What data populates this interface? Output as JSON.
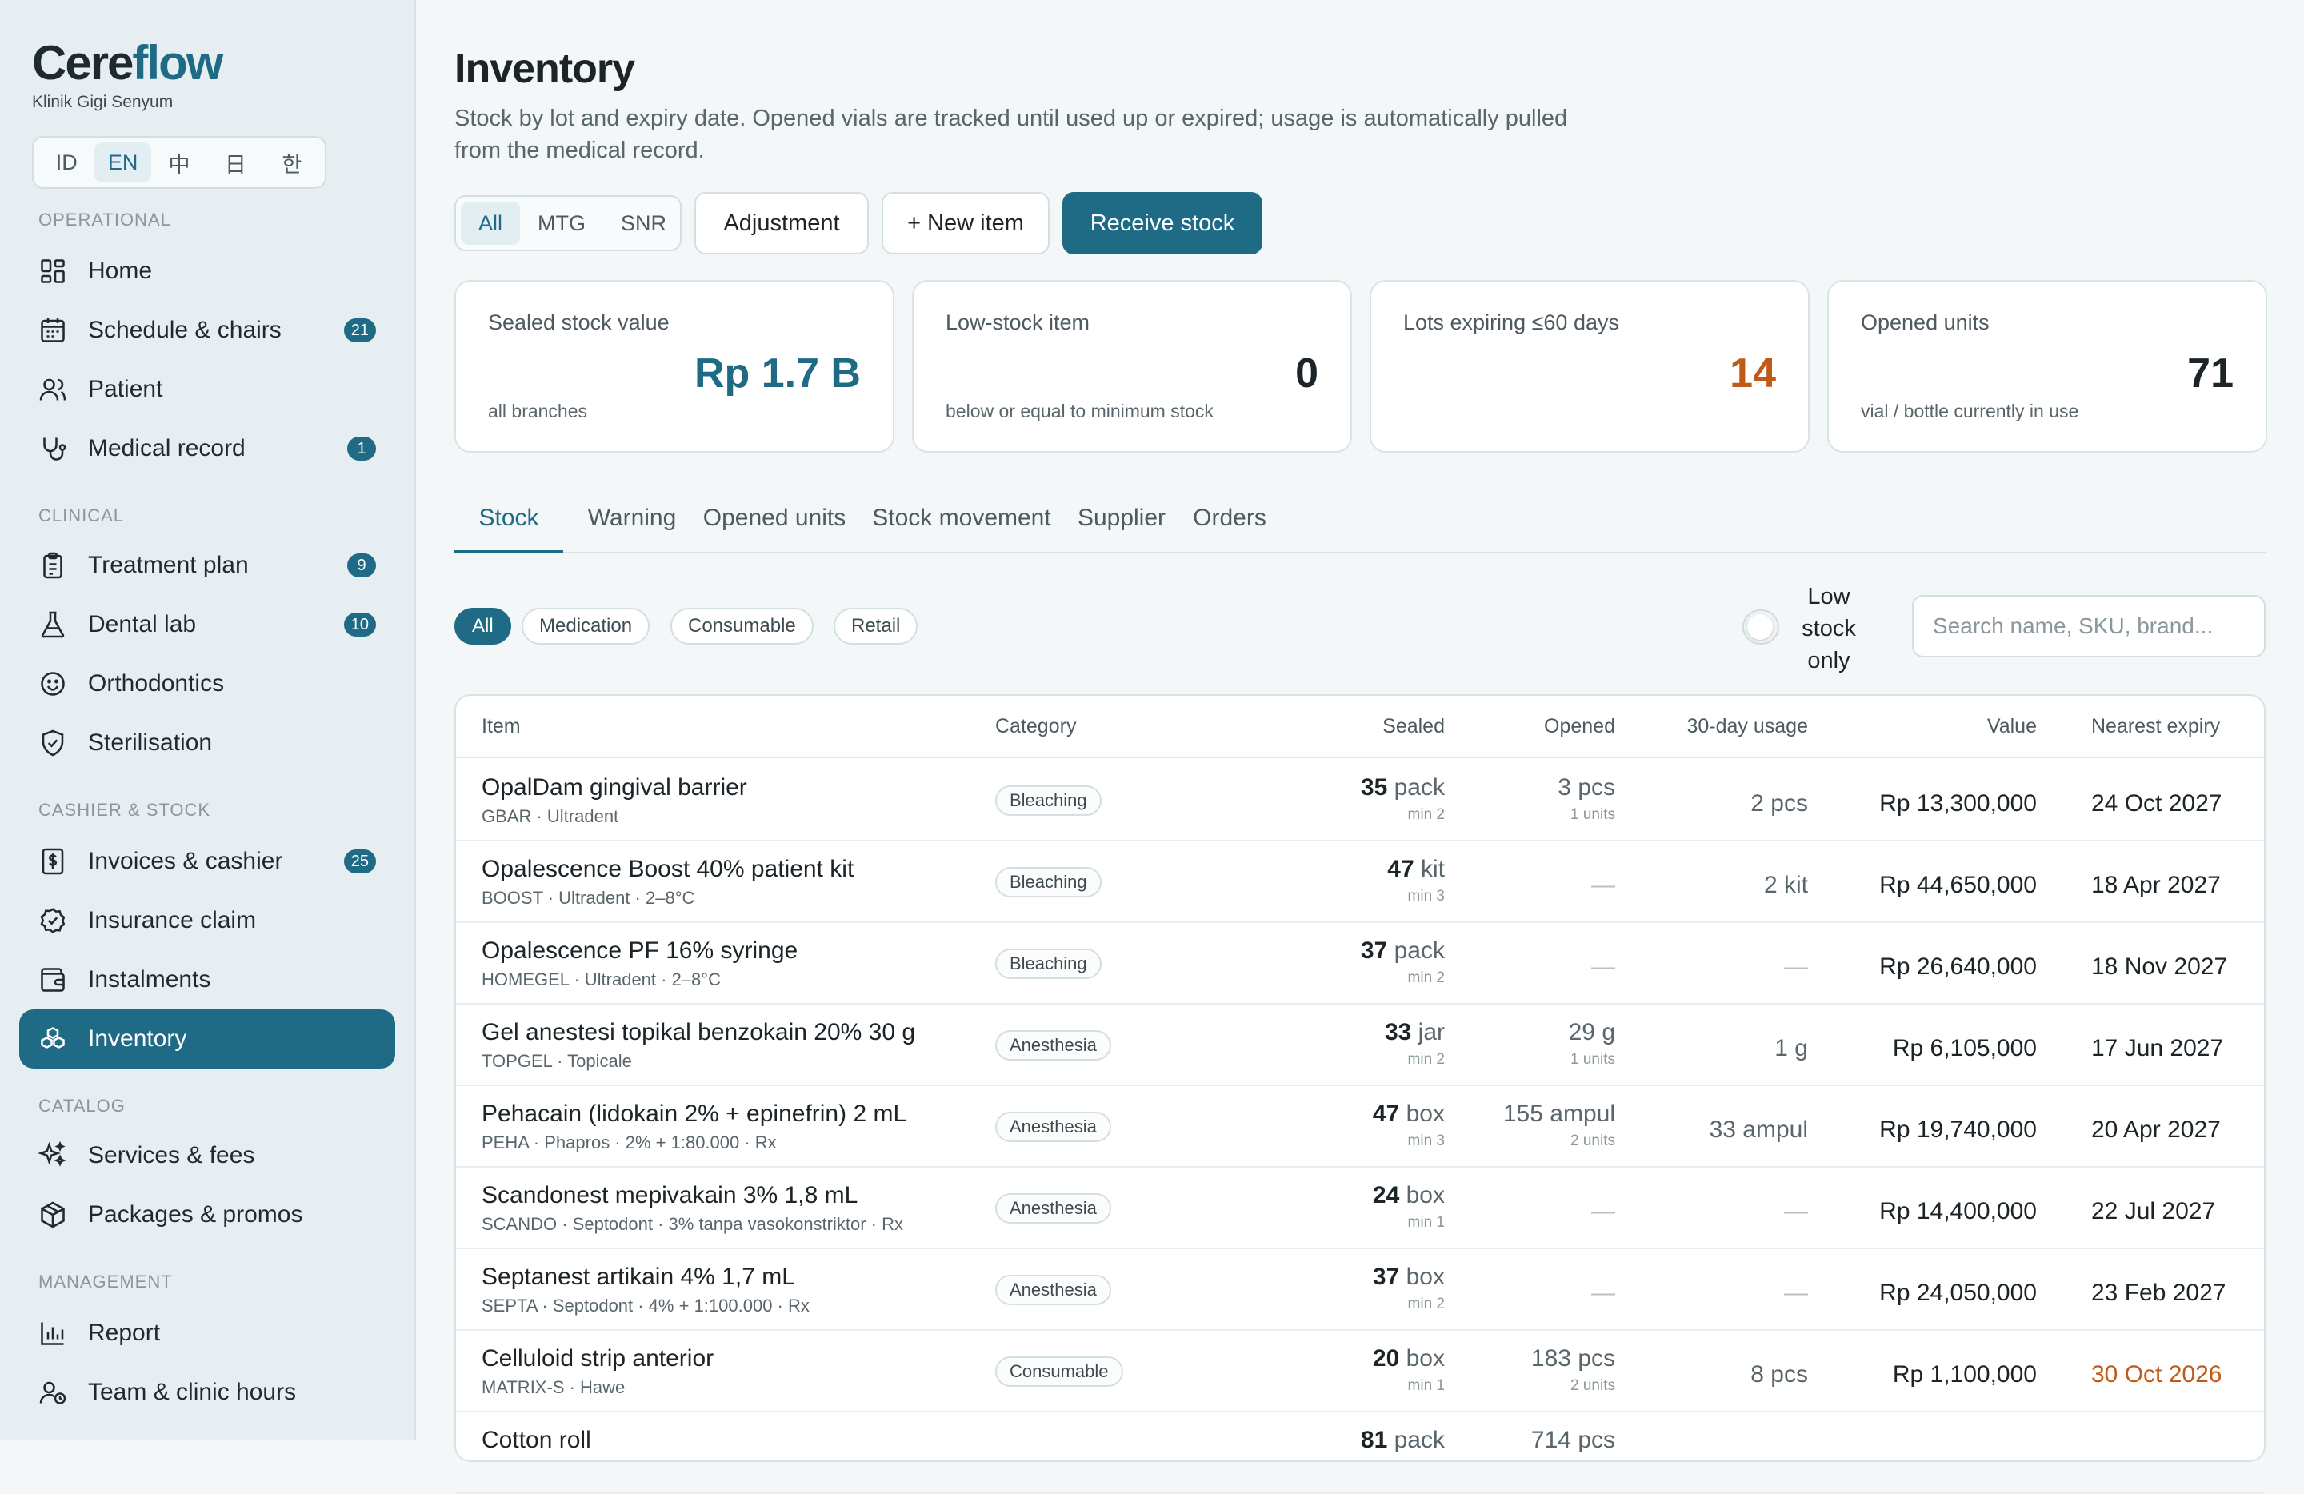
{
  "brand": {
    "logo_dark": "Cere",
    "logo_accent": "flow",
    "clinic": "Klinik Gigi Senyum"
  },
  "languages": [
    "ID",
    "EN",
    "中",
    "日",
    "한"
  ],
  "active_language": "EN",
  "sidebar": {
    "sections": {
      "operational": "OPERATIONAL",
      "clinical": "CLINICAL",
      "cashier": "CASHIER & STOCK",
      "catalog": "CATALOG",
      "management": "MANAGEMENT"
    },
    "items": {
      "home": {
        "label": "Home",
        "icon": "grid-icon"
      },
      "schedule": {
        "label": "Schedule & chairs",
        "icon": "calendar-icon",
        "badge": "21"
      },
      "patient": {
        "label": "Patient",
        "icon": "users-icon"
      },
      "medical": {
        "label": "Medical record",
        "icon": "stethoscope-icon",
        "badge": "1"
      },
      "treatment": {
        "label": "Treatment plan",
        "icon": "clipboard-icon",
        "badge": "9"
      },
      "dental_lab": {
        "label": "Dental lab",
        "icon": "flask-icon",
        "badge": "10"
      },
      "ortho": {
        "label": "Orthodontics",
        "icon": "smile-icon"
      },
      "steril": {
        "label": "Sterilisation",
        "icon": "shield-check-icon"
      },
      "invoices": {
        "label": "Invoices & cashier",
        "icon": "receipt-icon",
        "badge": "25"
      },
      "insurance": {
        "label": "Insurance claim",
        "icon": "check-circle-icon"
      },
      "instalments": {
        "label": "Instalments",
        "icon": "wallet-icon"
      },
      "inventory": {
        "label": "Inventory",
        "icon": "boxes-icon"
      },
      "services": {
        "label": "Services & fees",
        "icon": "sparkles-icon"
      },
      "packages": {
        "label": "Packages & promos",
        "icon": "package-icon"
      },
      "report": {
        "label": "Report",
        "icon": "bar-chart-icon"
      },
      "team": {
        "label": "Team & clinic hours",
        "icon": "user-clock-icon"
      }
    }
  },
  "page": {
    "title": "Inventory",
    "description": "Stock by lot and expiry date. Opened vials are tracked until used up or expired; usage is automatically pulled from the medical record."
  },
  "branch_filter": [
    "All",
    "MTG",
    "SNR"
  ],
  "buttons": {
    "adjustment": "Adjustment",
    "new_item": "+ New item",
    "receive": "Receive stock"
  },
  "stats": [
    {
      "label": "Sealed stock value",
      "value": "Rp 1.7 B",
      "sub": "all branches"
    },
    {
      "label": "Low-stock item",
      "value": "0",
      "sub": "below or equal to minimum stock"
    },
    {
      "label": "Lots expiring ≤60 days",
      "value": "14",
      "sub": ""
    },
    {
      "label": "Opened units",
      "value": "71",
      "sub": "vial / bottle currently in use"
    }
  ],
  "tabs": [
    "Stock",
    "Warning",
    "Opened units",
    "Stock movement",
    "Supplier",
    "Orders"
  ],
  "category_filters": [
    "All",
    "Medication",
    "Consumable",
    "Retail"
  ],
  "low_stock_label": "Low stock only",
  "search_placeholder": "Search name, SKU, brand...",
  "table": {
    "headers": {
      "item": "Item",
      "category": "Category",
      "sealed": "Sealed",
      "opened": "Opened",
      "usage": "30-day usage",
      "value": "Value",
      "expiry": "Nearest expiry"
    },
    "dash": "—",
    "rows": [
      {
        "name": "OpalDam gingival barrier",
        "meta": "GBAR · Ultradent",
        "category": "Bleaching",
        "sealed_qty": "35",
        "sealed_unit": "pack",
        "sealed_min": "min 2",
        "opened_qty": "3",
        "opened_unit": "pcs",
        "opened_sub": "1 units",
        "usage": "2 pcs",
        "value": "Rp 13,300,000",
        "expiry": "24 Oct 2027"
      },
      {
        "name": "Opalescence Boost 40% patient kit",
        "meta": "BOOST · Ultradent · 2–8°C",
        "category": "Bleaching",
        "sealed_qty": "47",
        "sealed_unit": "kit",
        "sealed_min": "min 3",
        "opened_qty": "",
        "opened_unit": "",
        "opened_sub": "",
        "usage": "2 kit",
        "value": "Rp 44,650,000",
        "expiry": "18 Apr 2027"
      },
      {
        "name": "Opalescence PF 16% syringe",
        "meta": "HOMEGEL · Ultradent · 2–8°C",
        "category": "Bleaching",
        "sealed_qty": "37",
        "sealed_unit": "pack",
        "sealed_min": "min 2",
        "opened_qty": "",
        "opened_unit": "",
        "opened_sub": "",
        "usage": "",
        "value": "Rp 26,640,000",
        "expiry": "18 Nov 2027"
      },
      {
        "name": "Gel anestesi topikal benzokain 20% 30 g",
        "meta": "TOPGEL · Topicale",
        "category": "Anesthesia",
        "sealed_qty": "33",
        "sealed_unit": "jar",
        "sealed_min": "min 2",
        "opened_qty": "29",
        "opened_unit": "g",
        "opened_sub": "1 units",
        "usage": "1 g",
        "value": "Rp 6,105,000",
        "expiry": "17 Jun 2027"
      },
      {
        "name": "Pehacain (lidokain 2% + epinefrin) 2 mL",
        "meta": "PEHA · Phapros · 2% + 1:80.000 · Rx",
        "category": "Anesthesia",
        "sealed_qty": "47",
        "sealed_unit": "box",
        "sealed_min": "min 3",
        "opened_qty": "155",
        "opened_unit": "ampul",
        "opened_sub": "2 units",
        "usage": "33 ampul",
        "value": "Rp 19,740,000",
        "expiry": "20 Apr 2027"
      },
      {
        "name": "Scandonest mepivakain 3% 1,8 mL",
        "meta": "SCANDO · Septodont · 3% tanpa vasokonstriktor · Rx",
        "category": "Anesthesia",
        "sealed_qty": "24",
        "sealed_unit": "box",
        "sealed_min": "min 1",
        "opened_qty": "",
        "opened_unit": "",
        "opened_sub": "",
        "usage": "",
        "value": "Rp 14,400,000",
        "expiry": "22 Jul 2027"
      },
      {
        "name": "Septanest artikain 4% 1,7 mL",
        "meta": "SEPTA · Septodont · 4% + 1:100.000 · Rx",
        "category": "Anesthesia",
        "sealed_qty": "37",
        "sealed_unit": "box",
        "sealed_min": "min 2",
        "opened_qty": "",
        "opened_unit": "",
        "opened_sub": "",
        "usage": "",
        "value": "Rp 24,050,000",
        "expiry": "23 Feb 2027"
      },
      {
        "name": "Celluloid strip anterior",
        "meta": "MATRIX-S · Hawe",
        "category": "Consumable",
        "sealed_qty": "20",
        "sealed_unit": "box",
        "sealed_min": "min 1",
        "opened_qty": "183",
        "opened_unit": "pcs",
        "opened_sub": "2 units",
        "usage": "8 pcs",
        "value": "Rp 1,100,000",
        "expiry": "30 Oct 2026",
        "expiry_warn": true
      },
      {
        "name": "Cotton roll",
        "meta": "",
        "category": "",
        "sealed_qty": "81",
        "sealed_unit": "pack",
        "sealed_min": "",
        "opened_qty": "714",
        "opened_unit": "pcs",
        "opened_sub": "",
        "usage": "",
        "value": "",
        "expiry": ""
      }
    ]
  },
  "colors": {
    "accent": "#1f6b86",
    "warning": "#c25a17",
    "sidebar_bg": "#e6eef1",
    "page_bg": "#f3f7f8"
  }
}
